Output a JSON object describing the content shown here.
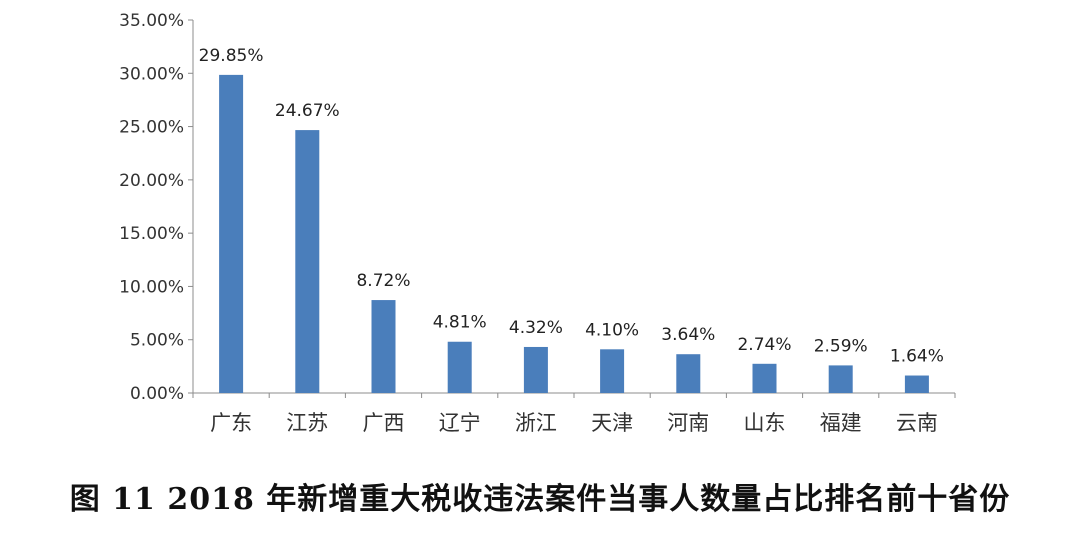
{
  "caption": "图 11   2018 年新增重大税收违法案件当事人数量占比排名前十省份",
  "chart_data": {
    "type": "bar",
    "categories": [
      "广东",
      "江苏",
      "广西",
      "辽宁",
      "浙江",
      "天津",
      "河南",
      "山东",
      "福建",
      "云南"
    ],
    "values": [
      29.85,
      24.67,
      8.72,
      4.81,
      4.32,
      4.1,
      3.64,
      2.74,
      2.59,
      1.64
    ],
    "data_labels": [
      "29.85%",
      "24.67%",
      "8.72%",
      "4.81%",
      "4.32%",
      "4.10%",
      "3.64%",
      "2.74%",
      "2.59%",
      "1.64%"
    ],
    "y_ticks": [
      "0.00%",
      "5.00%",
      "10.00%",
      "15.00%",
      "20.00%",
      "25.00%",
      "30.00%",
      "35.00%"
    ],
    "ylim": [
      0,
      35
    ],
    "grid": false,
    "bar_color": "#4a7ebb"
  }
}
